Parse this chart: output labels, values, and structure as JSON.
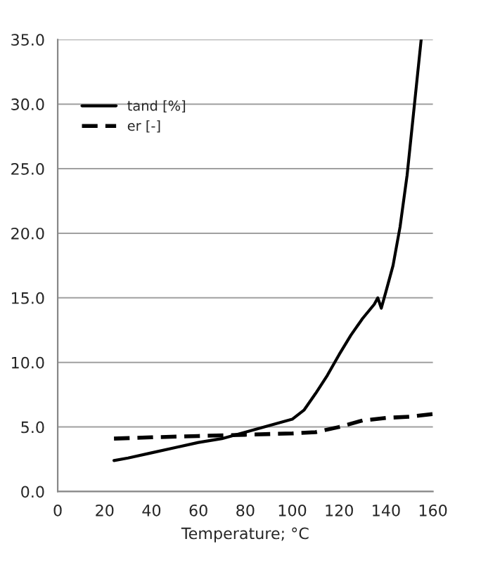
{
  "chart_data": {
    "type": "line",
    "xlabel": "Temperature; °C",
    "xlim": [
      0,
      160
    ],
    "xticks": [
      0,
      20,
      40,
      60,
      80,
      100,
      120,
      140,
      160
    ],
    "ylim": [
      0,
      35
    ],
    "yticks": [
      {
        "value": 0,
        "label": "0.0"
      },
      {
        "value": 5,
        "label": "5.0"
      },
      {
        "value": 10,
        "label": "10.0"
      },
      {
        "value": 15,
        "label": "15.0"
      },
      {
        "value": 20,
        "label": "20.0"
      },
      {
        "value": 25,
        "label": "25.0"
      },
      {
        "value": 30,
        "label": "30.0"
      },
      {
        "value": 35,
        "label": "35.0"
      }
    ],
    "grid": "y",
    "legend": "top left",
    "series": [
      {
        "name": "tand [%]",
        "color": "#000000",
        "line_style": "solid",
        "x": [
          24,
          30,
          40,
          50,
          60,
          70,
          80,
          90,
          100,
          105,
          110,
          115,
          120,
          125,
          130,
          135,
          136.5,
          138,
          140,
          143,
          146,
          149,
          151,
          153,
          155
        ],
        "values": [
          2.4,
          2.6,
          3.0,
          3.4,
          3.8,
          4.1,
          4.6,
          5.1,
          5.6,
          6.3,
          7.6,
          9.0,
          10.6,
          12.1,
          13.4,
          14.5,
          15.0,
          14.2,
          15.5,
          17.5,
          20.5,
          24.5,
          28,
          31.5,
          35
        ]
      },
      {
        "name": "er [-]",
        "color": "#000000",
        "line_style": "dashed",
        "x": [
          24,
          40,
          60,
          80,
          100,
          110,
          120,
          130,
          140,
          150,
          160
        ],
        "values": [
          4.1,
          4.2,
          4.3,
          4.4,
          4.5,
          4.6,
          5.0,
          5.5,
          5.7,
          5.8,
          6.0
        ]
      }
    ]
  }
}
